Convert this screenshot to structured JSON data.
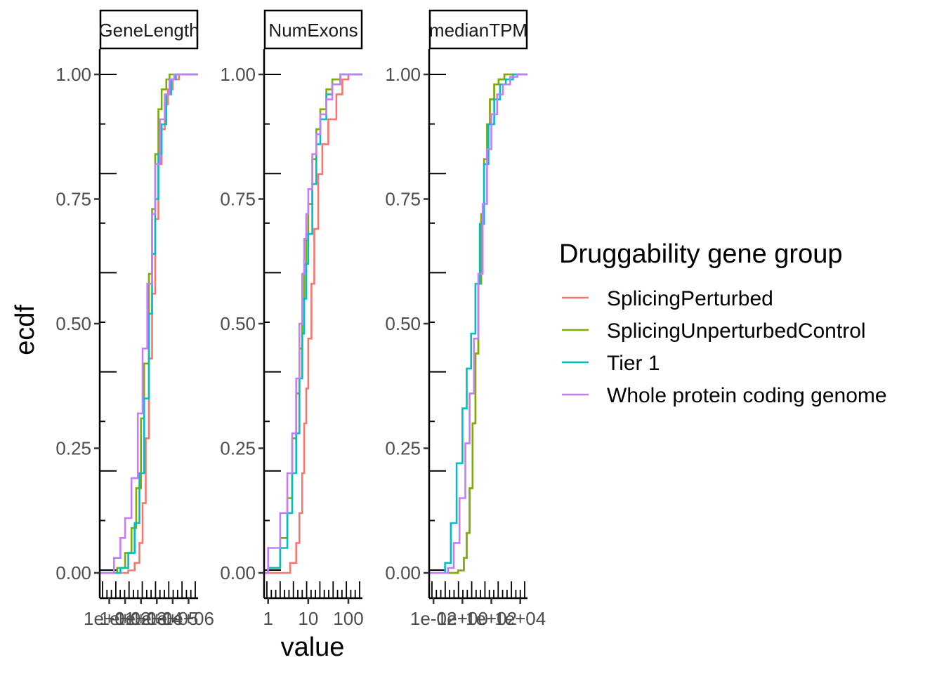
{
  "chart_data": {
    "type": "line",
    "subtype": "ecdf-step",
    "ylabel": "ecdf",
    "xlabel": "value",
    "ylim": [
      0,
      1
    ],
    "y_ticks": [
      "0.00",
      "0.25",
      "0.50",
      "0.75",
      "1.00"
    ],
    "grid": false,
    "x_scale": "log10",
    "legend": {
      "title": "Druggability gene group",
      "placement": "right",
      "entries": [
        {
          "name": "SplicingPerturbed",
          "color": "#F8766D"
        },
        {
          "name": "SplicingUnperturbedControl",
          "color": "#7CAE00"
        },
        {
          "name": "Tier 1",
          "color": "#00BFC4"
        },
        {
          "name": "Whole protein coding genome",
          "color": "#C77CFF"
        }
      ]
    },
    "panels": [
      {
        "strip": "GeneLength",
        "x_tick_labels": [
          "1e+01",
          "1e+02",
          "1e+03",
          "1e+04",
          "1e+05",
          "1e+06"
        ],
        "x_tick_values": [
          1,
          2,
          3,
          4,
          5,
          6
        ],
        "xlim_log10": [
          0.4,
          6.6
        ],
        "series": [
          {
            "name": "SplicingPerturbed",
            "x_log10": [
              0.4,
              1.5,
              2.2,
              2.6,
              2.9,
              3.1,
              3.3,
              3.5,
              3.7,
              3.9,
              4.1,
              4.3,
              4.5,
              4.7,
              5.0,
              5.4,
              6.6
            ],
            "y": [
              0,
              0,
              0.005,
              0.02,
              0.06,
              0.14,
              0.27,
              0.43,
              0.56,
              0.71,
              0.82,
              0.89,
              0.94,
              0.97,
              0.99,
              1.0,
              1.0
            ]
          },
          {
            "name": "SplicingUnperturbedControl",
            "x_log10": [
              0.4,
              0.9,
              1.5,
              2.0,
              2.4,
              2.7,
              3.0,
              3.2,
              3.5,
              3.7,
              3.9,
              4.1,
              4.3,
              4.6,
              4.8,
              6.6
            ],
            "y": [
              0,
              0,
              0.01,
              0.04,
              0.09,
              0.17,
              0.31,
              0.42,
              0.6,
              0.73,
              0.84,
              0.93,
              0.97,
              0.99,
              1.0,
              1.0
            ]
          },
          {
            "name": "Tier 1",
            "x_log10": [
              0.4,
              1.0,
              1.7,
              2.2,
              2.6,
              2.9,
              3.2,
              3.5,
              3.7,
              3.9,
              4.1,
              4.3,
              4.6,
              4.9,
              5.2,
              6.6
            ],
            "y": [
              0,
              0,
              0.01,
              0.04,
              0.1,
              0.2,
              0.35,
              0.52,
              0.64,
              0.75,
              0.84,
              0.9,
              0.96,
              0.99,
              1.0,
              1.0
            ]
          },
          {
            "name": "Whole protein coding genome",
            "x_log10": [
              0.4,
              1.1,
              1.3,
              1.7,
              2.0,
              2.4,
              2.8,
              3.1,
              3.4,
              3.7,
              3.9,
              4.2,
              4.5,
              4.8,
              5.1,
              6.6
            ],
            "y": [
              0,
              0,
              0.03,
              0.07,
              0.11,
              0.19,
              0.32,
              0.45,
              0.58,
              0.72,
              0.82,
              0.91,
              0.96,
              0.99,
              1.0,
              1.0
            ]
          }
        ]
      },
      {
        "strip": "NumExons",
        "x_tick_labels": [
          "1",
          "10",
          "100"
        ],
        "x_tick_values": [
          0,
          1,
          2
        ],
        "xlim_log10": [
          -0.1,
          2.35
        ],
        "series": [
          {
            "name": "SplicingPerturbed",
            "x_log10": [
              -0.1,
              0.4,
              0.55,
              0.7,
              0.78,
              0.85,
              0.9,
              0.95,
              1.0,
              1.08,
              1.15,
              1.25,
              1.35,
              1.5,
              1.7,
              1.85,
              2.0,
              2.35
            ],
            "y": [
              0,
              0,
              0.02,
              0.06,
              0.12,
              0.2,
              0.3,
              0.37,
              0.47,
              0.58,
              0.69,
              0.8,
              0.86,
              0.91,
              0.96,
              0.99,
              1.0,
              1.0
            ]
          },
          {
            "name": "SplicingUnperturbedControl",
            "x_log10": [
              -0.1,
              0.0,
              0.3,
              0.48,
              0.6,
              0.7,
              0.78,
              0.85,
              0.9,
              0.95,
              1.0,
              1.1,
              1.2,
              1.3,
              1.45,
              1.6,
              1.8,
              2.35
            ],
            "y": [
              0,
              0.01,
              0.07,
              0.15,
              0.27,
              0.36,
              0.45,
              0.55,
              0.62,
              0.68,
              0.74,
              0.83,
              0.89,
              0.93,
              0.97,
              0.99,
              1.0,
              1.0
            ]
          },
          {
            "name": "Tier 1",
            "x_log10": [
              -0.1,
              0.0,
              0.3,
              0.48,
              0.6,
              0.7,
              0.78,
              0.85,
              0.9,
              0.95,
              1.0,
              1.1,
              1.2,
              1.3,
              1.45,
              1.6,
              1.8,
              2.35
            ],
            "y": [
              0,
              0.01,
              0.05,
              0.12,
              0.2,
              0.28,
              0.39,
              0.48,
              0.55,
              0.62,
              0.68,
              0.78,
              0.86,
              0.91,
              0.96,
              0.98,
              1.0,
              1.0
            ]
          },
          {
            "name": "Whole protein coding genome",
            "x_log10": [
              -0.1,
              0.0,
              0.3,
              0.48,
              0.6,
              0.7,
              0.78,
              0.85,
              0.9,
              0.95,
              1.0,
              1.1,
              1.2,
              1.3,
              1.45,
              1.6,
              1.8,
              2.35
            ],
            "y": [
              0,
              0.05,
              0.12,
              0.2,
              0.28,
              0.39,
              0.5,
              0.6,
              0.67,
              0.72,
              0.77,
              0.84,
              0.88,
              0.92,
              0.95,
              0.98,
              1.0,
              1.0
            ]
          }
        ]
      },
      {
        "strip": "medianTPM",
        "x_tick_labels": [
          "1e-02",
          "1e+00",
          "1e+02",
          "1e+04"
        ],
        "x_tick_values": [
          -2,
          0,
          2,
          4
        ],
        "xlim_log10": [
          -2.3,
          4.5
        ],
        "series": [
          {
            "name": "SplicingPerturbed",
            "x_log10": [
              -1.0,
              -0.3,
              0.1,
              0.3,
              0.5,
              0.7,
              0.9,
              1.1,
              1.3,
              1.5,
              1.7,
              1.9,
              2.2,
              2.5,
              2.9,
              4.5
            ],
            "y": [
              0,
              0.005,
              0.03,
              0.08,
              0.17,
              0.3,
              0.44,
              0.58,
              0.72,
              0.83,
              0.9,
              0.95,
              0.98,
              0.99,
              1.0,
              1.0
            ]
          },
          {
            "name": "SplicingUnperturbedControl",
            "x_log10": [
              -1.0,
              -0.3,
              0.1,
              0.3,
              0.5,
              0.7,
              0.9,
              1.1,
              1.3,
              1.5,
              1.7,
              1.9,
              2.2,
              2.5,
              2.9,
              4.5
            ],
            "y": [
              0,
              0.005,
              0.03,
              0.08,
              0.17,
              0.3,
              0.44,
              0.58,
              0.72,
              0.83,
              0.9,
              0.95,
              0.98,
              0.99,
              1.0,
              1.0
            ]
          },
          {
            "name": "Tier 1",
            "x_log10": [
              -2.3,
              -1.2,
              -0.8,
              -0.4,
              0.0,
              0.3,
              0.6,
              0.9,
              1.2,
              1.5,
              1.8,
              2.2,
              2.6,
              3.0,
              3.5,
              4.5
            ],
            "y": [
              0,
              0.02,
              0.1,
              0.22,
              0.33,
              0.41,
              0.48,
              0.58,
              0.7,
              0.82,
              0.9,
              0.95,
              0.98,
              0.99,
              1.0,
              1.0
            ]
          },
          {
            "name": "Whole protein coding genome",
            "x_log10": [
              -2.3,
              -1.0,
              -0.6,
              -0.2,
              0.2,
              0.5,
              0.8,
              1.1,
              1.4,
              1.7,
              2.0,
              2.4,
              2.8,
              3.3,
              3.8,
              4.5
            ],
            "y": [
              0,
              0.01,
              0.06,
              0.15,
              0.26,
              0.36,
              0.47,
              0.6,
              0.74,
              0.85,
              0.92,
              0.96,
              0.98,
              0.995,
              1.0,
              1.0
            ]
          }
        ]
      }
    ]
  }
}
